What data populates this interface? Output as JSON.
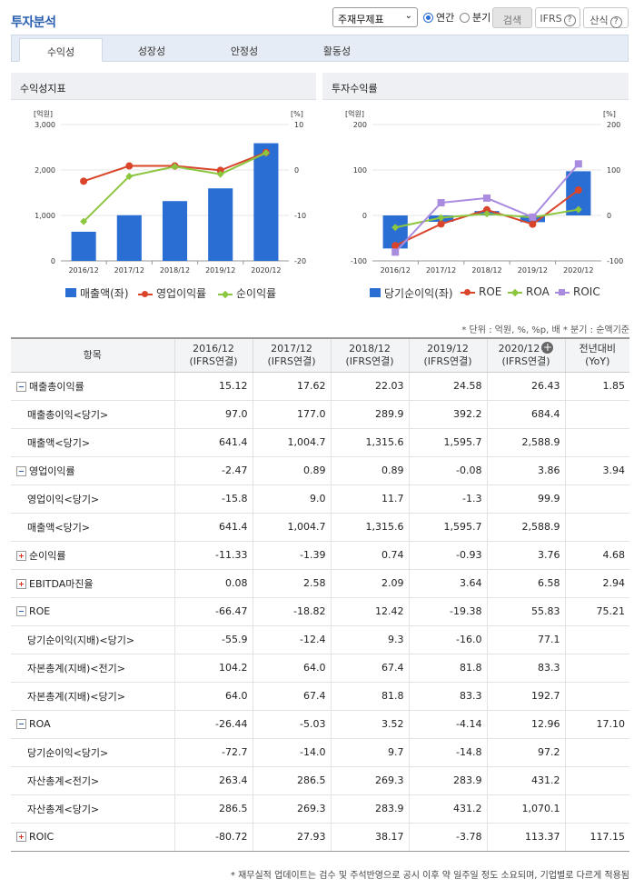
{
  "header": {
    "title": "투자분석",
    "select_value": "주재무제표",
    "radio_annual": "연간",
    "radio_quarter": "분기",
    "search_button": "검색",
    "ifrs_button": "IFRS",
    "formula_button": "산식",
    "question_mark": "?"
  },
  "tabs": [
    {
      "label": "수익성",
      "active": true
    },
    {
      "label": "성장성",
      "active": false
    },
    {
      "label": "안정성",
      "active": false
    },
    {
      "label": "활동성",
      "active": false
    }
  ],
  "left_panel": {
    "title": "수익성지표"
  },
  "right_panel": {
    "title": "투자수익률"
  },
  "chart_data": [
    {
      "type": "bar",
      "title": "수익성지표",
      "categories": [
        "2016/12",
        "2017/12",
        "2018/12",
        "2019/12",
        "2020/12"
      ],
      "left_axis_unit": "[억원]",
      "right_axis_unit": "[%]",
      "left_ylim": [
        0,
        3000
      ],
      "left_ticks": [
        "3,000",
        "2,000",
        "1,000",
        "0"
      ],
      "right_ylim": [
        -20,
        10
      ],
      "right_ticks": [
        "10",
        "0",
        "-10",
        "-20"
      ],
      "series": [
        {
          "name": "매출액(좌)",
          "kind": "bar",
          "axis": "left",
          "color": "#2a6ed4",
          "values": [
            641.4,
            1004.7,
            1315.6,
            1595.7,
            2588.9
          ]
        },
        {
          "name": "영업이익률",
          "kind": "line",
          "axis": "right",
          "color": "#d9442b",
          "marker": "circle",
          "values": [
            -2.47,
            0.89,
            0.89,
            -0.08,
            3.86
          ]
        },
        {
          "name": "순이익률",
          "kind": "line",
          "axis": "right",
          "color": "#8cc63f",
          "marker": "diamond",
          "values": [
            -11.33,
            -1.39,
            0.74,
            -0.93,
            3.76
          ]
        }
      ]
    },
    {
      "type": "bar",
      "title": "투자수익률",
      "categories": [
        "2016/12",
        "2017/12",
        "2018/12",
        "2019/12",
        "2020/12"
      ],
      "left_axis_unit": "[억원]",
      "right_axis_unit": "[%]",
      "left_ylim": [
        -100,
        200
      ],
      "left_ticks": [
        "200",
        "100",
        "0",
        "-100"
      ],
      "right_ylim": [
        -100,
        200
      ],
      "right_ticks": [
        "200",
        "100",
        "0",
        "-100"
      ],
      "series": [
        {
          "name": "당기순이익(좌)",
          "kind": "bar",
          "axis": "left",
          "color": "#2a6ed4",
          "values": [
            -72.7,
            -14.0,
            9.7,
            -14.8,
            97.2
          ]
        },
        {
          "name": "ROE",
          "kind": "line",
          "axis": "right",
          "color": "#d9442b",
          "marker": "circle",
          "values": [
            -66.47,
            -18.82,
            12.42,
            -19.38,
            55.83
          ]
        },
        {
          "name": "ROA",
          "kind": "line",
          "axis": "right",
          "color": "#8cc63f",
          "marker": "diamond",
          "values": [
            -26.44,
            -5.03,
            3.52,
            -4.14,
            12.96
          ]
        },
        {
          "name": "ROIC",
          "kind": "line",
          "axis": "right",
          "color": "#a98be0",
          "marker": "square",
          "values": [
            -80.72,
            27.93,
            38.17,
            -3.78,
            113.37
          ]
        }
      ]
    }
  ],
  "unit_note": "* 단위 : 억원, %, %p, 배   * 분기 : 순액기준",
  "table": {
    "item_header": "항목",
    "yoy_header": [
      "전년대비",
      "(YoY)"
    ],
    "periods": [
      {
        "year": "2016/12",
        "basis": "(IFRS연결)"
      },
      {
        "year": "2017/12",
        "basis": "(IFRS연결)"
      },
      {
        "year": "2018/12",
        "basis": "(IFRS연결)"
      },
      {
        "year": "2019/12",
        "basis": "(IFRS연결)"
      },
      {
        "year": "2020/12",
        "basis": "(IFRS연결)"
      }
    ],
    "rows": [
      {
        "label": "매출총이익률",
        "toggle": "minus",
        "values": [
          "15.12",
          "17.62",
          "22.03",
          "24.58",
          "26.43"
        ],
        "yoy": "1.85"
      },
      {
        "label": "매출총이익<당기>",
        "sub": true,
        "values": [
          "97.0",
          "177.0",
          "289.9",
          "392.2",
          "684.4"
        ],
        "yoy": ""
      },
      {
        "label": "매출액<당기>",
        "sub": true,
        "values": [
          "641.4",
          "1,004.7",
          "1,315.6",
          "1,595.7",
          "2,588.9"
        ],
        "yoy": ""
      },
      {
        "label": "영업이익률",
        "toggle": "minus",
        "values": [
          "-2.47",
          "0.89",
          "0.89",
          "-0.08",
          "3.86"
        ],
        "yoy": "3.94"
      },
      {
        "label": "영업이익<당기>",
        "sub": true,
        "values": [
          "-15.8",
          "9.0",
          "11.7",
          "-1.3",
          "99.9"
        ],
        "yoy": ""
      },
      {
        "label": "매출액<당기>",
        "sub": true,
        "values": [
          "641.4",
          "1,004.7",
          "1,315.6",
          "1,595.7",
          "2,588.9"
        ],
        "yoy": ""
      },
      {
        "label": "순이익률",
        "toggle": "plus",
        "values": [
          "-11.33",
          "-1.39",
          "0.74",
          "-0.93",
          "3.76"
        ],
        "yoy": "4.68"
      },
      {
        "label": "EBITDA마진율",
        "toggle": "plus",
        "values": [
          "0.08",
          "2.58",
          "2.09",
          "3.64",
          "6.58"
        ],
        "yoy": "2.94"
      },
      {
        "label": "ROE",
        "toggle": "minus",
        "values": [
          "-66.47",
          "-18.82",
          "12.42",
          "-19.38",
          "55.83"
        ],
        "yoy": "75.21"
      },
      {
        "label": "당기순이익(지배)<당기>",
        "sub": true,
        "values": [
          "-55.9",
          "-12.4",
          "9.3",
          "-16.0",
          "77.1"
        ],
        "yoy": ""
      },
      {
        "label": "자본총계(지배)<전기>",
        "sub": true,
        "values": [
          "104.2",
          "64.0",
          "67.4",
          "81.8",
          "83.3"
        ],
        "yoy": ""
      },
      {
        "label": "자본총계(지배)<당기>",
        "sub": true,
        "values": [
          "64.0",
          "67.4",
          "81.8",
          "83.3",
          "192.7"
        ],
        "yoy": ""
      },
      {
        "label": "ROA",
        "toggle": "minus",
        "values": [
          "-26.44",
          "-5.03",
          "3.52",
          "-4.14",
          "12.96"
        ],
        "yoy": "17.10"
      },
      {
        "label": "당기순이익<당기>",
        "sub": true,
        "values": [
          "-72.7",
          "-14.0",
          "9.7",
          "-14.8",
          "97.2"
        ],
        "yoy": ""
      },
      {
        "label": "자산총계<전기>",
        "sub": true,
        "values": [
          "263.4",
          "286.5",
          "269.3",
          "283.9",
          "431.2"
        ],
        "yoy": ""
      },
      {
        "label": "자산총계<당기>",
        "sub": true,
        "values": [
          "286.5",
          "269.3",
          "283.9",
          "431.2",
          "1,070.1"
        ],
        "yoy": ""
      },
      {
        "label": "ROIC",
        "toggle": "plus",
        "values": [
          "-80.72",
          "27.93",
          "38.17",
          "-3.78",
          "113.37"
        ],
        "yoy": "117.15"
      }
    ]
  },
  "footnote": "* 재무실적 업데이트는 검수 및 주석반영으로 공시 이후 약 일주일 정도 소요되며, 기업별로 다르게 적용됨"
}
